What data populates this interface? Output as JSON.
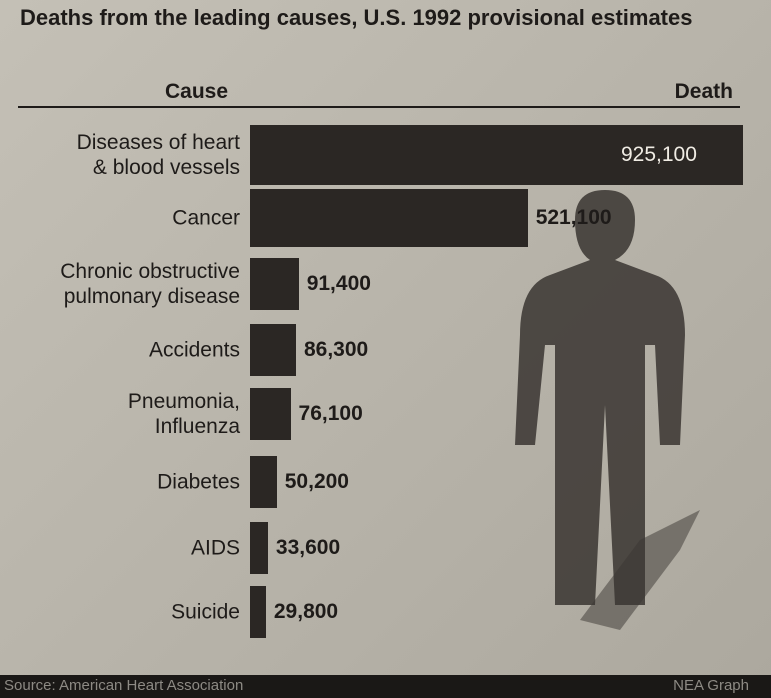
{
  "chart_data": {
    "type": "bar",
    "orientation": "horizontal",
    "title": "Deaths from the leading causes, U.S. 1992 provisional estimates",
    "category_header": "Cause",
    "value_header": "Death",
    "categories": [
      "Diseases of heart\n& blood vessels",
      "Cancer",
      "Chronic obstructive\npulmonary disease",
      "Accidents",
      "Pneumonia,\nInfluenza",
      "Diabetes",
      "AIDS",
      "Suicide"
    ],
    "values": [
      925100,
      521100,
      91400,
      86300,
      76100,
      50200,
      33600,
      29800
    ],
    "value_labels": [
      "925,100",
      "521,100",
      "91,400",
      "86,300",
      "76,100",
      "50,200",
      "33,600",
      "29,800"
    ],
    "color": "#2b2724",
    "source": "Source: American Heart Association",
    "credit": "NEA Graph"
  }
}
